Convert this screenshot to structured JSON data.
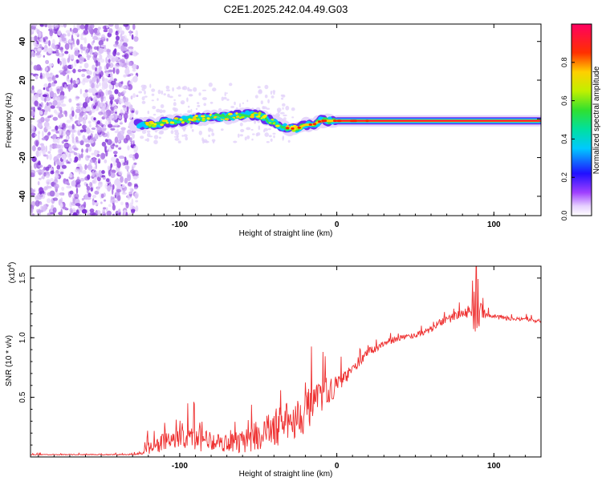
{
  "title": "C2E1.2025.242.04.49.G03",
  "chart_data": [
    {
      "type": "heatmap",
      "xlabel": "Height of straight line (km)",
      "ylabel": "Frequency (Hz)",
      "xlim": [
        -195,
        130
      ],
      "ylim": [
        -50,
        49
      ],
      "xticks": [
        -100,
        0,
        100
      ],
      "yticks": [
        -40,
        -20,
        0,
        20,
        40
      ],
      "colorbar": {
        "label": "Normalized spectral amplitude",
        "range": [
          0,
          1
        ],
        "ticks": [
          "0.0",
          "0.2",
          "0.4",
          "0.6",
          "0.8"
        ]
      },
      "ridge": {
        "x": [
          -127,
          -120,
          -110,
          -100,
          -90,
          -80,
          -70,
          -60,
          -50,
          -40,
          -35,
          -30,
          -25,
          -20,
          -15,
          -10,
          -5,
          0,
          10,
          20,
          40,
          60,
          80,
          100,
          130
        ],
        "freq": [
          -3,
          -3,
          -2,
          -1,
          0,
          1,
          1,
          2,
          2,
          -2,
          -4,
          -5,
          -5,
          -3,
          -3,
          -1,
          -1,
          -1,
          -1,
          -1,
          -1,
          -1,
          -1,
          -1,
          -1
        ]
      }
    },
    {
      "type": "line",
      "xlabel": "Height of straight line (km)",
      "ylabel": "SNR (10 * v/v)",
      "y_scale_label": "(x10",
      "y_scale_exp": "4",
      "xlim": [
        -195,
        130
      ],
      "ylim": [
        0,
        1.6
      ],
      "xticks": [
        -100,
        0,
        100
      ],
      "yticks": [
        "0.5",
        "1.0",
        "1.5"
      ],
      "series": [
        {
          "name": "SNR",
          "color": "#ee3030",
          "x": [
            -195,
            -130,
            -125,
            -120,
            -110,
            -100,
            -90,
            -80,
            -70,
            -60,
            -50,
            -40,
            -30,
            -20,
            -10,
            0,
            10,
            20,
            30,
            40,
            50,
            60,
            65,
            70,
            80,
            85,
            88,
            90,
            92,
            95,
            100,
            110,
            120,
            130
          ],
          "y": [
            0.02,
            0.02,
            0.03,
            0.08,
            0.12,
            0.14,
            0.15,
            0.14,
            0.12,
            0.13,
            0.18,
            0.24,
            0.3,
            0.38,
            0.5,
            0.6,
            0.73,
            0.88,
            0.95,
            1.0,
            1.02,
            1.07,
            1.12,
            1.15,
            1.2,
            1.22,
            1.25,
            1.2,
            1.22,
            1.2,
            1.18,
            1.16,
            1.15,
            1.14
          ],
          "noise_amplitude": [
            0.005,
            0.005,
            0.02,
            0.08,
            0.1,
            0.12,
            0.14,
            0.1,
            0.1,
            0.12,
            0.16,
            0.2,
            0.22,
            0.22,
            0.16,
            0.1,
            0.05,
            0.04,
            0.04,
            0.03,
            0.03,
            0.03,
            0.04,
            0.04,
            0.05,
            0.08,
            0.3,
            0.2,
            0.08,
            0.04,
            0.03,
            0.02,
            0.02,
            0.02
          ]
        }
      ]
    }
  ]
}
